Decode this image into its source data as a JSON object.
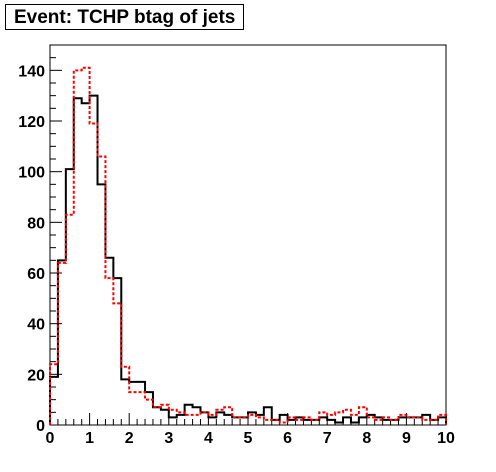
{
  "chart_data": {
    "type": "histogram",
    "title": "Event: TCHP btag of jets",
    "xlabel": "",
    "ylabel": "",
    "xlim": [
      0,
      10
    ],
    "ylim": [
      0,
      150
    ],
    "bin_width": 0.2,
    "grid": false,
    "legend": "none",
    "xticks": [
      0,
      1,
      2,
      3,
      4,
      5,
      6,
      7,
      8,
      9,
      10
    ],
    "yticks": [
      0,
      20,
      40,
      60,
      80,
      100,
      120,
      140
    ],
    "series": [
      {
        "style": "solid",
        "color": "#000000",
        "values": [
          19,
          65,
          101,
          129,
          127,
          130,
          95,
          66,
          58,
          18,
          17,
          17,
          13,
          7,
          6,
          3,
          4,
          8,
          7,
          5,
          3,
          5,
          4,
          3,
          3,
          5,
          4,
          7,
          2,
          4,
          2,
          3,
          2,
          2,
          3,
          2,
          1,
          3,
          1,
          3,
          4,
          3,
          2,
          2,
          3,
          3,
          3,
          4,
          2,
          3
        ]
      },
      {
        "style": "dashed",
        "color": "#ff0000",
        "values": [
          24,
          64,
          83,
          140,
          141,
          119,
          106,
          58,
          48,
          23,
          13,
          13,
          10,
          7,
          8,
          6,
          5,
          4,
          4,
          5,
          4,
          6,
          7,
          3,
          3,
          4,
          3,
          2,
          2,
          1,
          3,
          2,
          3,
          2,
          5,
          4,
          5,
          6,
          4,
          7,
          3,
          2,
          3,
          2,
          4,
          3,
          3,
          2,
          2,
          4
        ]
      }
    ]
  }
}
